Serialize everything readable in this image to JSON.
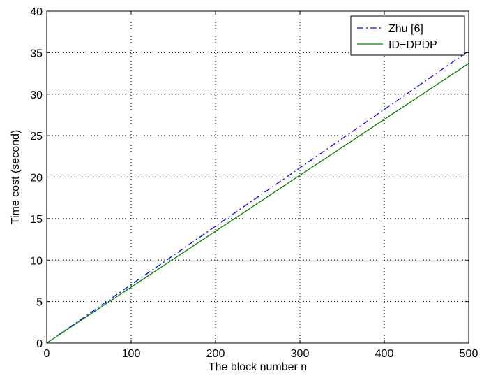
{
  "chart_data": {
    "type": "line",
    "title": "",
    "xlabel": "The block number n",
    "ylabel": "Time cost (second)",
    "xlim": [
      0,
      500
    ],
    "ylim": [
      0,
      40
    ],
    "xticks": [
      0,
      100,
      200,
      300,
      400,
      500
    ],
    "yticks": [
      0,
      5,
      10,
      15,
      20,
      25,
      30,
      35,
      40
    ],
    "grid": true,
    "legend_position": "top-right",
    "series": [
      {
        "name": "Zhu [6]",
        "color": "#0000ff",
        "line_style": "dashdot",
        "x": [
          0,
          500
        ],
        "y": [
          0,
          35.2
        ]
      },
      {
        "name": "ID−DPDP",
        "color": "#008000",
        "line_style": "solid",
        "x": [
          0,
          500
        ],
        "y": [
          0,
          33.7
        ]
      }
    ]
  }
}
